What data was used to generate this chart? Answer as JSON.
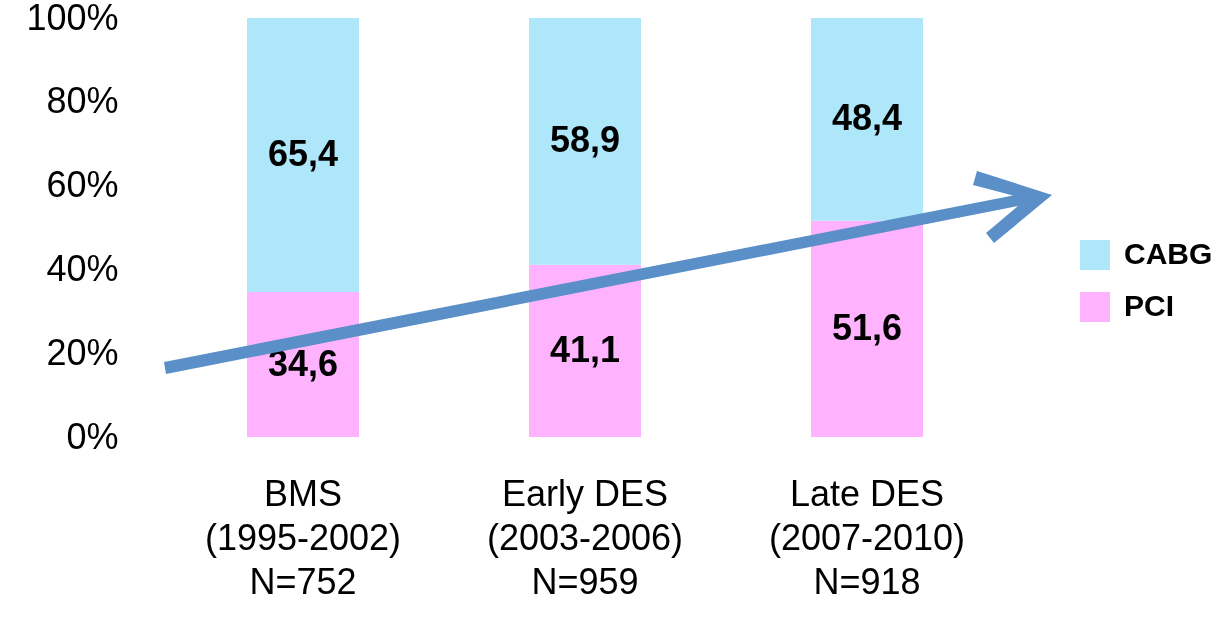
{
  "chart_data": {
    "type": "bar",
    "stacked": true,
    "categories": [
      "BMS\n(1995-2002)\nN=752",
      "Early DES\n(2003-2006)\nN=959",
      "Late DES\n(2007-2010)\nN=918"
    ],
    "series": [
      {
        "name": "PCI",
        "color": "#ffb3ff",
        "values": [
          34.6,
          41.1,
          51.6
        ],
        "value_labels": [
          "34,6",
          "41,1",
          "51,6"
        ]
      },
      {
        "name": "CABG",
        "color": "#aee6fa",
        "values": [
          65.4,
          58.9,
          48.4
        ],
        "value_labels": [
          "65,4",
          "58,9",
          "48,4"
        ]
      }
    ],
    "ylim": [
      0,
      100
    ],
    "yticks": [
      {
        "value": 0,
        "label": "0%"
      },
      {
        "value": 20,
        "label": "20%"
      },
      {
        "value": 40,
        "label": "40%"
      },
      {
        "value": 60,
        "label": "60%"
      },
      {
        "value": 80,
        "label": "80%"
      },
      {
        "value": 100,
        "label": "100%"
      }
    ],
    "grid": false,
    "legend": "right"
  }
}
